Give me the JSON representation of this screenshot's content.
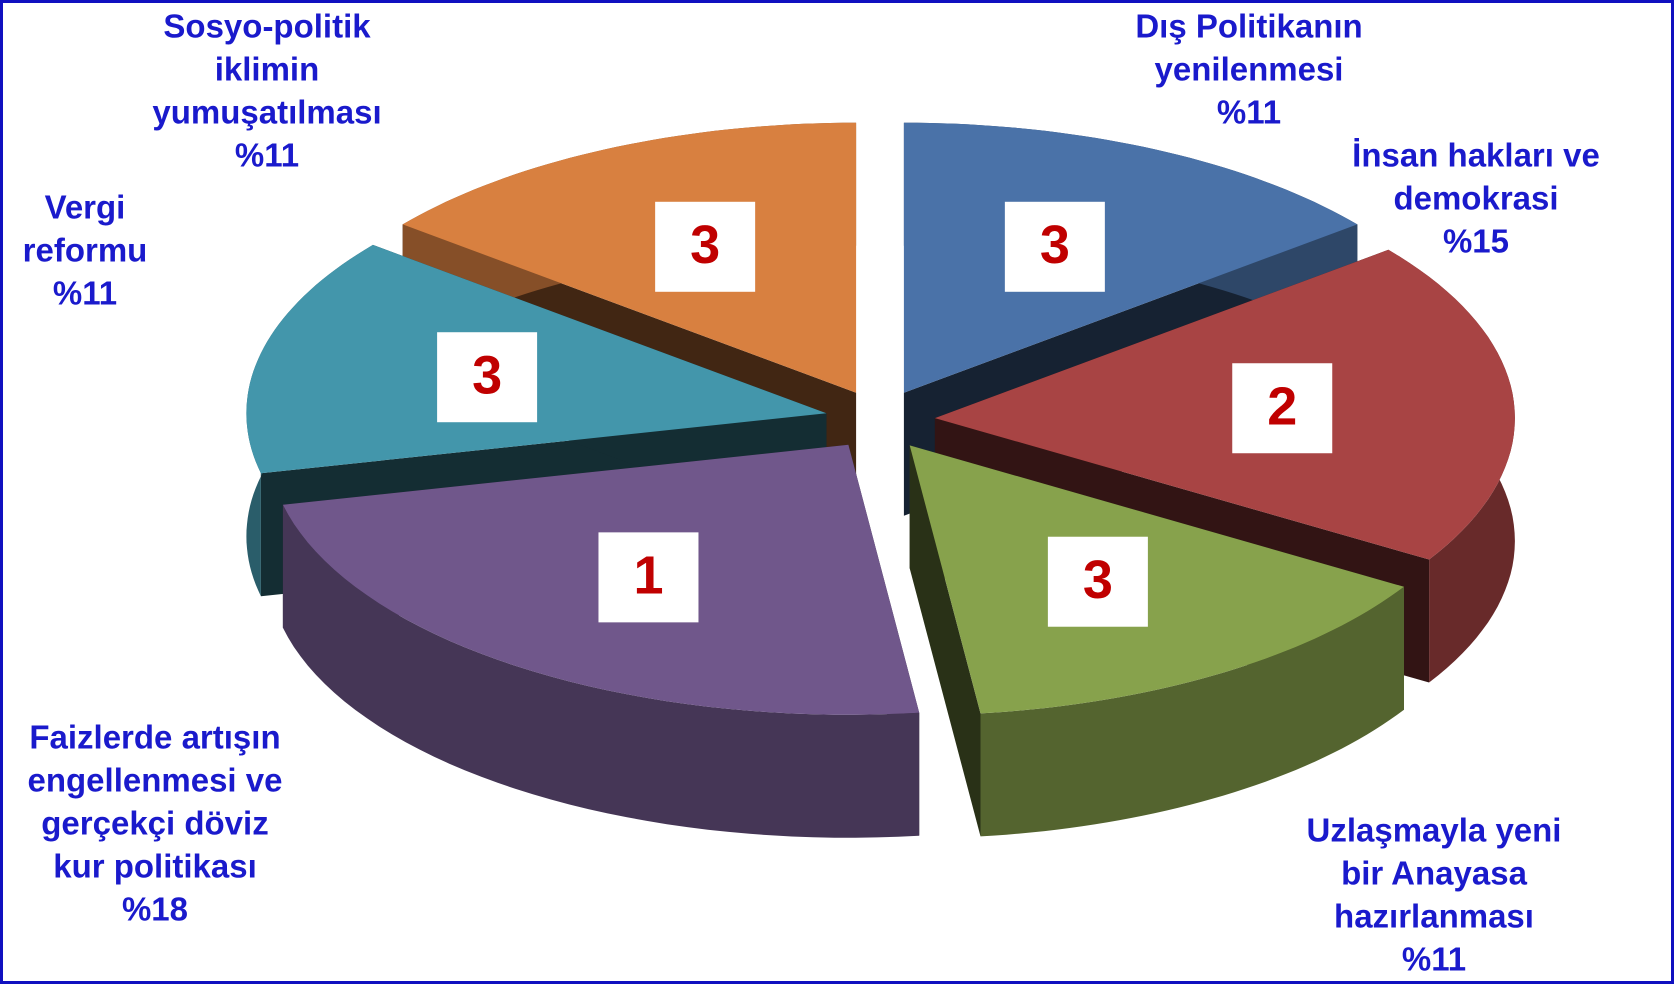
{
  "chart_data": {
    "type": "pie3d",
    "categories": [
      [
        "Dış Politikanın",
        "yenilenmesi"
      ],
      [
        "İnsan hakları ve",
        "demokrasi"
      ],
      [
        "Uzlaşmayla yeni",
        "bir Anayasa",
        "hazırlanması"
      ],
      [
        "Faizlerde artışın",
        "engellenmesi ve",
        "gerçekçi döviz",
        "kur politikası"
      ],
      [
        "Vergi",
        "reformu"
      ],
      [
        "Sosyo-politik",
        "iklimin",
        "yumuşatılması"
      ]
    ],
    "values": [
      11,
      15,
      11,
      18,
      11,
      11
    ],
    "value_labels": [
      "%11",
      "%15",
      "%11",
      "%18",
      "%11",
      "%11"
    ],
    "ranks": [
      3,
      2,
      3,
      1,
      3,
      3
    ],
    "colors": [
      "#4a72a8",
      "#a84444",
      "#87a24c",
      "#70578b",
      "#4396ab",
      "#d88040"
    ]
  }
}
